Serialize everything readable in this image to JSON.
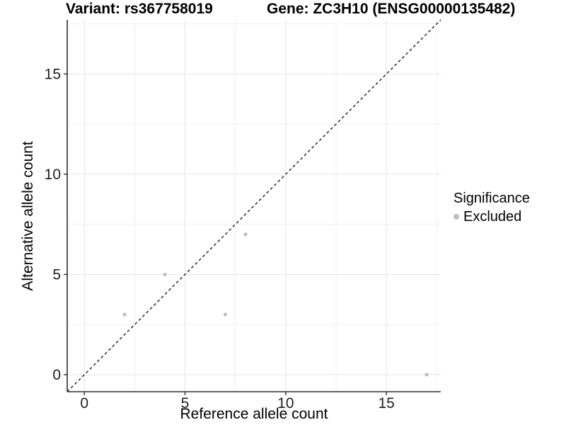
{
  "titles": {
    "variant": "Variant: rs367758019",
    "gene": "Gene: ZC3H10 (ENSG00000135482)"
  },
  "legend": {
    "title": "Significance",
    "items": [
      {
        "label": "Excluded",
        "color": "#bdbdbd"
      }
    ]
  },
  "colors": {
    "background": "#ffffff",
    "grid_major": "#e5e5e5",
    "grid_minor": "#f0f0f0",
    "axis_line": "#2e2e2e",
    "tick_mark": "#2e2e2e",
    "tick_label": "#1f1f1f",
    "point": "#bdbdbd",
    "identity_line": "#1c1c1c"
  },
  "chart_data": {
    "type": "scatter",
    "title": "Variant: rs367758019 | Gene: ZC3H10 (ENSG00000135482)",
    "xlabel": "Reference allele count",
    "ylabel": "Alternative allele count",
    "series": [
      {
        "name": "Excluded",
        "color": "#bdbdbd",
        "points": [
          [
            2,
            3
          ],
          [
            4,
            5
          ],
          [
            7,
            3
          ],
          [
            8,
            7
          ],
          [
            17,
            0
          ]
        ]
      }
    ],
    "reference_line": {
      "kind": "identity",
      "slope": 1,
      "intercept": 0,
      "style": "dashed"
    },
    "x_ticks": [
      0,
      5,
      10,
      15
    ],
    "y_ticks": [
      0,
      5,
      10,
      15
    ],
    "x_minor_ticks": [
      2.5,
      7.5,
      12.5,
      17.5
    ],
    "y_minor_ticks": [
      2.5,
      7.5,
      12.5,
      17.5
    ],
    "xlim": [
      -0.85,
      17.7
    ],
    "ylim": [
      -0.85,
      17.7
    ],
    "grid": true,
    "legend_position": "right",
    "legend_title": "Significance"
  }
}
